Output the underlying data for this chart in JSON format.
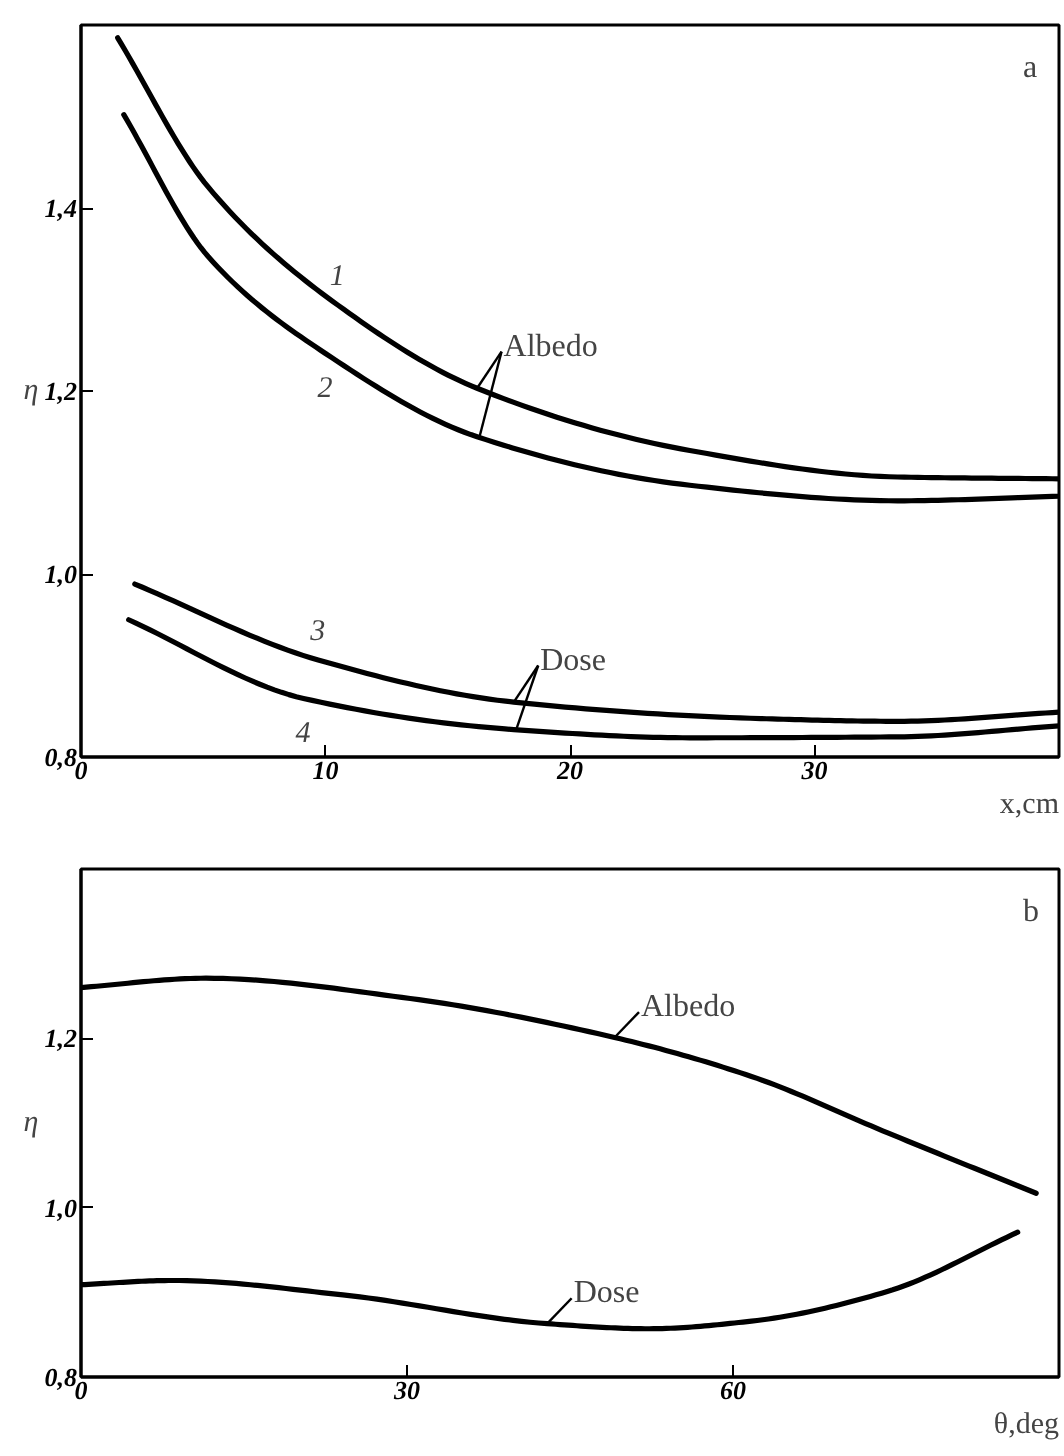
{
  "chart_data": [
    {
      "type": "line",
      "xlabel": "x,cm",
      "ylabel": "η",
      "xlim": [
        0,
        40
      ],
      "ylim": [
        0.8,
        1.6
      ],
      "xticks": [
        0,
        10,
        20,
        30
      ],
      "yticks": [
        {
          "value": 0.8,
          "label": "0,8"
        },
        {
          "value": 1.0,
          "label": "1,0"
        },
        {
          "value": 1.2,
          "label": "1,2"
        },
        {
          "value": 1.4,
          "label": "1,4"
        }
      ],
      "series": [
        {
          "name": "1",
          "color": "#000000",
          "x": [
            1.5,
            5.2,
            10.5,
            16.2,
            24.9,
            33.4,
            40
          ],
          "values": [
            1.586,
            1.423,
            1.294,
            1.203,
            1.135,
            1.106,
            1.104
          ]
        },
        {
          "name": "2",
          "color": "#000000",
          "x": [
            1.75,
            5.2,
            10,
            16.2,
            24.9,
            33.4,
            40
          ],
          "values": [
            1.502,
            1.347,
            1.241,
            1.15,
            1.097,
            1.08,
            1.085
          ]
        },
        {
          "name": "3",
          "color": "#000000",
          "x": [
            2.2,
            9.7,
            17.7,
            27.8,
            33.4,
            40
          ],
          "values": [
            0.989,
            0.906,
            0.86,
            0.842,
            0.839,
            0.849
          ]
        },
        {
          "name": "4",
          "color": "#000000",
          "x": [
            1.95,
            9.1,
            17.7,
            24.9,
            33.4,
            40
          ],
          "values": [
            0.95,
            0.864,
            0.83,
            0.821,
            0.822,
            0.834
          ]
        }
      ],
      "annotations": [
        "a",
        {
          "text": "Albedo",
          "x": 16.2,
          "y": 1.203
        },
        {
          "text": "Dose",
          "x": 17.7,
          "y": 0.86
        }
      ],
      "grid": false
    },
    {
      "type": "line",
      "xlabel": "θ,deg",
      "ylabel": "η",
      "xlim": [
        0,
        90
      ],
      "ylim": [
        0.8,
        1.4
      ],
      "xticks": [
        0,
        30,
        60
      ],
      "yticks": [
        {
          "value": 0.8,
          "label": "0,8"
        },
        {
          "value": 1.0,
          "label": "1,0"
        },
        {
          "value": 1.2,
          "label": "1,2"
        }
      ],
      "series": [
        {
          "color": "#000000",
          "x": [
            0,
            11.5,
            30.3,
            49.1,
            61.7,
            74.3,
            87.9
          ],
          "values": [
            1.26,
            1.271,
            1.247,
            1.201,
            1.155,
            1.088,
            1.017
          ]
        },
        {
          "color": "#000000",
          "x": [
            0,
            8.4,
            24.1,
            42.9,
            52.3,
            61.7,
            74.2,
            86.2
          ],
          "values": [
            0.909,
            0.914,
            0.897,
            0.863,
            0.857,
            0.866,
            0.901,
            0.971
          ]
        }
      ],
      "annotations": [
        "b",
        {
          "text": "Albedo",
          "x": 49.1,
          "y": 1.201
        },
        {
          "text": "Dose",
          "x": 42.9,
          "y": 0.863
        }
      ],
      "grid": false
    }
  ]
}
